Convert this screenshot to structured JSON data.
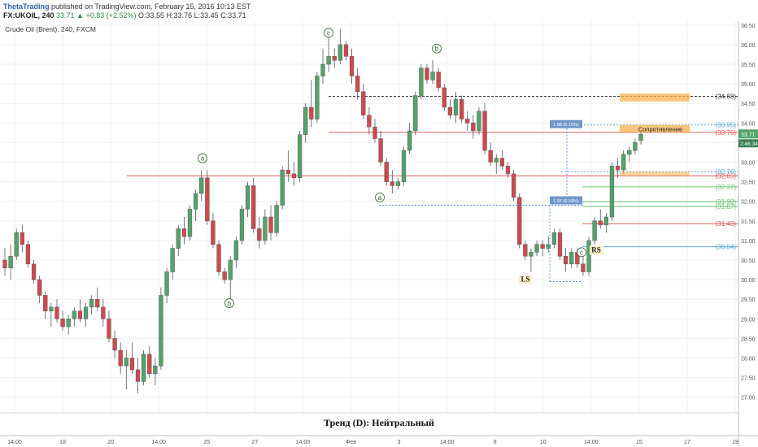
{
  "header": {
    "author": "ThetaTrading",
    "published": "published on TradingView.com, February 15, 2016 10:13 EST",
    "symbol": "FX:UKOIL, 240",
    "change": "33.71 ▲ +0.83 (+2.52%)",
    "ohlc": "O:33.55 H:33.76 L:33.45 C:33.71"
  },
  "chart_data": {
    "type": "candlestick",
    "title": "Crude Oil (Brent), 240, FXCM",
    "bottom_caption": "Тренд (D): Нейтральный",
    "ylim": [
      26.6,
      36.6
    ],
    "y_ticks": [
      "36.50",
      "36.00",
      "35.50",
      "35.00",
      "34.50",
      "34.00",
      "33.50",
      "33.00",
      "32.50",
      "32.00",
      "31.50",
      "31.00",
      "30.50",
      "30.00",
      "29.50",
      "29.00",
      "28.50",
      "28.00",
      "27.50",
      "27.00"
    ],
    "x_ticks": [
      "14:00",
      "18",
      "20",
      "14:00",
      "25",
      "27",
      "14:00",
      "Фев",
      "3",
      "14:00",
      "8",
      "10",
      "14:00",
      "15",
      "17",
      "19"
    ],
    "last_price": "33.71",
    "countdown": "2:46:34",
    "colors": {
      "up": "#53a36b",
      "down": "#d0494d",
      "resistance_line": "#e05a5a",
      "blue_line": "#5aa9d6",
      "green_line": "#6cbf6c",
      "zone": "#f7b24f"
    },
    "horizontal_levels": [
      {
        "label": "34.68",
        "value": 34.68,
        "color": "#333333",
        "style": "dashed"
      },
      {
        "label": "33.95",
        "value": 33.95,
        "color": "#5aa9d6",
        "style": "dotted"
      },
      {
        "label": "33.76",
        "value": 33.76,
        "color": "#e05a5a",
        "style": "solid"
      },
      {
        "label": "32.76",
        "value": 32.76,
        "color": "#5aa9d6",
        "style": "dotted"
      },
      {
        "label": "32.65",
        "value": 32.65,
        "color": "#e05a5a",
        "style": "solid"
      },
      {
        "label": "32.37",
        "value": 32.37,
        "color": "#6cbf6c",
        "style": "solid"
      },
      {
        "label": "31.99",
        "value": 31.99,
        "color": "#6cbf6c",
        "style": "solid"
      },
      {
        "label": "31.87",
        "value": 31.87,
        "color": "#6cbf6c",
        "style": "solid"
      },
      {
        "label": "31.43",
        "value": 31.43,
        "color": "#e05a5a",
        "style": "solid"
      },
      {
        "label": "30.84",
        "value": 30.84,
        "color": "#5aa9d6",
        "style": "solid"
      }
    ],
    "annotations": [
      {
        "text": "c",
        "type": "wave"
      },
      {
        "text": "b",
        "type": "wave"
      },
      {
        "text": "a",
        "type": "wave"
      },
      {
        "text": "b",
        "type": "wave"
      },
      {
        "text": "a",
        "type": "wave"
      },
      {
        "text": "c",
        "type": "wave"
      },
      {
        "text": "LS",
        "type": "label"
      },
      {
        "text": "RS",
        "type": "label"
      },
      {
        "text": "Сопротивление",
        "type": "zone"
      },
      {
        "text": "1.98 (6.15%)",
        "type": "measure"
      },
      {
        "text": "1.97 (6.59%)",
        "type": "measure"
      }
    ],
    "candles": [
      {
        "o": 30.5,
        "h": 30.8,
        "l": 30.1,
        "c": 30.3
      },
      {
        "o": 30.3,
        "h": 30.9,
        "l": 30.0,
        "c": 30.6
      },
      {
        "o": 30.6,
        "h": 31.3,
        "l": 30.5,
        "c": 31.2
      },
      {
        "o": 31.2,
        "h": 31.4,
        "l": 30.7,
        "c": 30.9
      },
      {
        "o": 30.9,
        "h": 31.0,
        "l": 30.3,
        "c": 30.4
      },
      {
        "o": 30.4,
        "h": 30.5,
        "l": 29.9,
        "c": 30.0
      },
      {
        "o": 30.0,
        "h": 30.1,
        "l": 29.4,
        "c": 29.6
      },
      {
        "o": 29.6,
        "h": 29.7,
        "l": 29.0,
        "c": 29.2
      },
      {
        "o": 29.2,
        "h": 29.4,
        "l": 28.8,
        "c": 29.3
      },
      {
        "o": 29.3,
        "h": 29.5,
        "l": 28.9,
        "c": 29.0
      },
      {
        "o": 29.0,
        "h": 29.2,
        "l": 28.7,
        "c": 28.8
      },
      {
        "o": 28.8,
        "h": 29.1,
        "l": 28.6,
        "c": 29.0
      },
      {
        "o": 29.0,
        "h": 29.3,
        "l": 28.8,
        "c": 29.2
      },
      {
        "o": 29.2,
        "h": 29.5,
        "l": 28.9,
        "c": 29.0
      },
      {
        "o": 29.0,
        "h": 29.4,
        "l": 28.8,
        "c": 29.3
      },
      {
        "o": 29.3,
        "h": 29.6,
        "l": 29.1,
        "c": 29.5
      },
      {
        "o": 29.5,
        "h": 29.8,
        "l": 29.2,
        "c": 29.3
      },
      {
        "o": 29.3,
        "h": 29.5,
        "l": 28.8,
        "c": 29.0
      },
      {
        "o": 29.0,
        "h": 29.2,
        "l": 28.4,
        "c": 28.5
      },
      {
        "o": 28.5,
        "h": 28.7,
        "l": 28.0,
        "c": 28.2
      },
      {
        "o": 28.2,
        "h": 28.4,
        "l": 27.6,
        "c": 27.8
      },
      {
        "o": 27.8,
        "h": 28.2,
        "l": 27.2,
        "c": 28.0
      },
      {
        "o": 28.0,
        "h": 28.4,
        "l": 27.6,
        "c": 27.7
      },
      {
        "o": 27.7,
        "h": 28.0,
        "l": 27.1,
        "c": 27.4
      },
      {
        "o": 27.4,
        "h": 28.2,
        "l": 27.3,
        "c": 28.1
      },
      {
        "o": 28.1,
        "h": 28.3,
        "l": 27.5,
        "c": 27.6
      },
      {
        "o": 27.6,
        "h": 28.0,
        "l": 27.3,
        "c": 27.8
      },
      {
        "o": 27.8,
        "h": 29.8,
        "l": 27.7,
        "c": 29.6
      },
      {
        "o": 29.6,
        "h": 30.3,
        "l": 29.4,
        "c": 30.2
      },
      {
        "o": 30.2,
        "h": 30.9,
        "l": 30.0,
        "c": 30.8
      },
      {
        "o": 30.8,
        "h": 31.4,
        "l": 30.6,
        "c": 31.3
      },
      {
        "o": 31.3,
        "h": 31.6,
        "l": 30.9,
        "c": 31.1
      },
      {
        "o": 31.1,
        "h": 31.9,
        "l": 31.0,
        "c": 31.8
      },
      {
        "o": 31.8,
        "h": 32.3,
        "l": 31.5,
        "c": 32.2
      },
      {
        "o": 32.2,
        "h": 32.8,
        "l": 32.0,
        "c": 32.6
      },
      {
        "o": 32.6,
        "h": 32.8,
        "l": 31.4,
        "c": 31.5
      },
      {
        "o": 31.5,
        "h": 31.7,
        "l": 30.8,
        "c": 30.9
      },
      {
        "o": 30.9,
        "h": 31.0,
        "l": 30.1,
        "c": 30.2
      },
      {
        "o": 30.2,
        "h": 30.3,
        "l": 29.9,
        "c": 30.0
      },
      {
        "o": 30.0,
        "h": 30.6,
        "l": 29.5,
        "c": 30.5
      },
      {
        "o": 30.5,
        "h": 31.1,
        "l": 30.3,
        "c": 31.0
      },
      {
        "o": 31.0,
        "h": 31.9,
        "l": 30.9,
        "c": 31.8
      },
      {
        "o": 31.8,
        "h": 32.5,
        "l": 31.6,
        "c": 32.4
      },
      {
        "o": 32.4,
        "h": 32.6,
        "l": 31.2,
        "c": 31.3
      },
      {
        "o": 31.3,
        "h": 31.6,
        "l": 30.8,
        "c": 31.0
      },
      {
        "o": 31.0,
        "h": 31.8,
        "l": 30.9,
        "c": 31.6
      },
      {
        "o": 31.6,
        "h": 31.9,
        "l": 31.0,
        "c": 31.2
      },
      {
        "o": 31.2,
        "h": 32.0,
        "l": 31.1,
        "c": 31.9
      },
      {
        "o": 31.9,
        "h": 32.9,
        "l": 31.8,
        "c": 32.8
      },
      {
        "o": 32.8,
        "h": 33.3,
        "l": 32.5,
        "c": 32.7
      },
      {
        "o": 32.7,
        "h": 33.0,
        "l": 32.4,
        "c": 32.6
      },
      {
        "o": 32.6,
        "h": 33.8,
        "l": 32.5,
        "c": 33.7
      },
      {
        "o": 33.7,
        "h": 34.5,
        "l": 33.5,
        "c": 34.4
      },
      {
        "o": 34.4,
        "h": 35.1,
        "l": 33.9,
        "c": 34.1
      },
      {
        "o": 34.1,
        "h": 35.3,
        "l": 34.0,
        "c": 35.2
      },
      {
        "o": 35.2,
        "h": 35.9,
        "l": 35.0,
        "c": 35.5
      },
      {
        "o": 35.5,
        "h": 36.2,
        "l": 35.3,
        "c": 35.7
      },
      {
        "o": 35.7,
        "h": 35.9,
        "l": 35.4,
        "c": 35.6
      },
      {
        "o": 35.6,
        "h": 36.4,
        "l": 35.5,
        "c": 36.0
      },
      {
        "o": 36.0,
        "h": 36.1,
        "l": 35.6,
        "c": 35.7
      },
      {
        "o": 35.7,
        "h": 35.9,
        "l": 35.0,
        "c": 35.2
      },
      {
        "o": 35.2,
        "h": 35.4,
        "l": 34.6,
        "c": 34.8
      },
      {
        "o": 34.8,
        "h": 35.0,
        "l": 34.1,
        "c": 34.2
      },
      {
        "o": 34.2,
        "h": 34.4,
        "l": 33.7,
        "c": 33.9
      },
      {
        "o": 33.9,
        "h": 34.1,
        "l": 33.5,
        "c": 33.6
      },
      {
        "o": 33.6,
        "h": 33.8,
        "l": 32.9,
        "c": 33.0
      },
      {
        "o": 33.0,
        "h": 33.1,
        "l": 32.4,
        "c": 32.5
      },
      {
        "o": 32.5,
        "h": 32.8,
        "l": 32.2,
        "c": 32.4
      },
      {
        "o": 32.4,
        "h": 32.6,
        "l": 32.3,
        "c": 32.5
      },
      {
        "o": 32.5,
        "h": 33.4,
        "l": 32.4,
        "c": 33.3
      },
      {
        "o": 33.3,
        "h": 34.0,
        "l": 33.2,
        "c": 33.8
      },
      {
        "o": 33.8,
        "h": 34.8,
        "l": 33.7,
        "c": 34.7
      },
      {
        "o": 34.7,
        "h": 35.5,
        "l": 34.6,
        "c": 35.4
      },
      {
        "o": 35.4,
        "h": 35.5,
        "l": 35.0,
        "c": 35.1
      },
      {
        "o": 35.1,
        "h": 35.6,
        "l": 35.0,
        "c": 35.3
      },
      {
        "o": 35.3,
        "h": 35.4,
        "l": 34.8,
        "c": 34.9
      },
      {
        "o": 34.9,
        "h": 35.0,
        "l": 34.3,
        "c": 34.4
      },
      {
        "o": 34.4,
        "h": 34.6,
        "l": 34.1,
        "c": 34.2
      },
      {
        "o": 34.2,
        "h": 34.8,
        "l": 34.0,
        "c": 34.6
      },
      {
        "o": 34.6,
        "h": 34.7,
        "l": 34.0,
        "c": 34.1
      },
      {
        "o": 34.1,
        "h": 34.3,
        "l": 33.8,
        "c": 34.0
      },
      {
        "o": 34.0,
        "h": 34.2,
        "l": 33.6,
        "c": 33.8
      },
      {
        "o": 33.8,
        "h": 34.4,
        "l": 33.7,
        "c": 34.3
      },
      {
        "o": 34.3,
        "h": 34.5,
        "l": 33.2,
        "c": 33.3
      },
      {
        "o": 33.3,
        "h": 33.5,
        "l": 32.9,
        "c": 33.0
      },
      {
        "o": 33.0,
        "h": 33.2,
        "l": 32.7,
        "c": 33.1
      },
      {
        "o": 33.1,
        "h": 33.3,
        "l": 32.8,
        "c": 32.9
      },
      {
        "o": 32.9,
        "h": 33.0,
        "l": 32.6,
        "c": 32.7
      },
      {
        "o": 32.7,
        "h": 32.8,
        "l": 32.0,
        "c": 32.1
      },
      {
        "o": 32.1,
        "h": 32.2,
        "l": 30.8,
        "c": 30.9
      },
      {
        "o": 30.9,
        "h": 31.0,
        "l": 30.5,
        "c": 30.6
      },
      {
        "o": 30.6,
        "h": 30.8,
        "l": 30.2,
        "c": 30.7
      },
      {
        "o": 30.7,
        "h": 31.0,
        "l": 30.6,
        "c": 30.9
      },
      {
        "o": 30.9,
        "h": 31.0,
        "l": 30.6,
        "c": 30.8
      },
      {
        "o": 30.8,
        "h": 31.1,
        "l": 30.7,
        "c": 30.9
      },
      {
        "o": 30.9,
        "h": 31.3,
        "l": 30.8,
        "c": 31.2
      },
      {
        "o": 31.2,
        "h": 31.3,
        "l": 30.5,
        "c": 30.6
      },
      {
        "o": 30.6,
        "h": 30.8,
        "l": 30.2,
        "c": 30.4
      },
      {
        "o": 30.4,
        "h": 30.8,
        "l": 30.3,
        "c": 30.7
      },
      {
        "o": 30.7,
        "h": 30.8,
        "l": 30.3,
        "c": 30.4
      },
      {
        "o": 30.4,
        "h": 30.6,
        "l": 30.1,
        "c": 30.2
      },
      {
        "o": 30.2,
        "h": 31.1,
        "l": 30.1,
        "c": 31.0
      },
      {
        "o": 31.0,
        "h": 31.6,
        "l": 30.9,
        "c": 31.5
      },
      {
        "o": 31.5,
        "h": 31.8,
        "l": 31.3,
        "c": 31.4
      },
      {
        "o": 31.4,
        "h": 31.7,
        "l": 31.2,
        "c": 31.6
      },
      {
        "o": 31.6,
        "h": 33.0,
        "l": 31.5,
        "c": 32.9
      },
      {
        "o": 32.9,
        "h": 33.1,
        "l": 32.6,
        "c": 32.8
      },
      {
        "o": 32.8,
        "h": 33.3,
        "l": 32.7,
        "c": 33.2
      },
      {
        "o": 33.2,
        "h": 33.4,
        "l": 33.0,
        "c": 33.3
      },
      {
        "o": 33.3,
        "h": 33.6,
        "l": 33.2,
        "c": 33.5
      },
      {
        "o": 33.55,
        "h": 33.76,
        "l": 33.45,
        "c": 33.71
      }
    ]
  }
}
